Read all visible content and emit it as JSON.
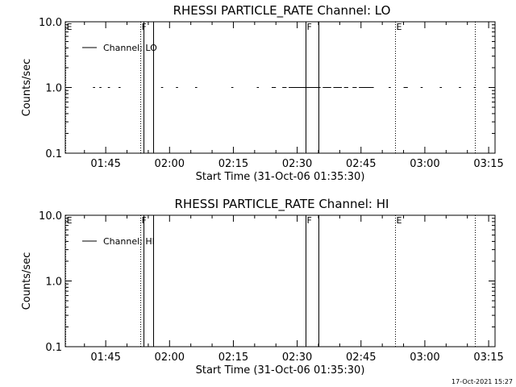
{
  "footer": {
    "timestamp": "17-Oct-2021 15:27"
  },
  "chart_data": [
    {
      "type": "line",
      "title": "RHESSI PARTICLE_RATE Channel: LO",
      "xlabel": "Start Time (31-Oct-06 01:35:30)",
      "ylabel": "Counts/sec",
      "yscale": "log",
      "ylim": [
        0.1,
        10.0
      ],
      "xlim": [
        "01:35:30",
        "03:16:30"
      ],
      "x_ticks": [
        "01:45",
        "02:00",
        "02:15",
        "02:30",
        "02:45",
        "03:00",
        "03:15"
      ],
      "y_ticks": [
        "0.1",
        "1.0",
        "10.0"
      ],
      "legend": {
        "position": "top-left",
        "entries": [
          "Channel: LO"
        ]
      },
      "series": [
        {
          "name": "Channel: LO",
          "value": 1.0,
          "segments": [
            [
              "01:42:00",
              "01:42:30"
            ],
            [
              "01:43:30",
              "01:44:00"
            ],
            [
              "01:45:30",
              "01:46:00"
            ],
            [
              "01:48:00",
              "01:48:30"
            ],
            [
              "01:58:00",
              "01:58:30"
            ],
            [
              "02:01:30",
              "02:02:00"
            ],
            [
              "02:06:00",
              "02:06:30"
            ],
            [
              "02:14:30",
              "02:15:00"
            ],
            [
              "02:20:30",
              "02:21:00"
            ],
            [
              "02:24:00",
              "02:25:00"
            ],
            [
              "02:26:30",
              "02:27:30"
            ],
            [
              "02:28:00",
              "02:35:30"
            ],
            [
              "02:36:00",
              "02:38:00"
            ],
            [
              "02:38:30",
              "02:40:30"
            ],
            [
              "02:41:00",
              "02:42:00"
            ],
            [
              "02:43:00",
              "02:44:00"
            ],
            [
              "02:44:30",
              "02:48:00"
            ],
            [
              "02:51:30",
              "02:52:00"
            ],
            [
              "02:55:00",
              "02:56:00"
            ],
            [
              "02:59:00",
              "02:59:30"
            ],
            [
              "03:03:30",
              "03:04:00"
            ],
            [
              "03:08:00",
              "03:08:30"
            ],
            [
              "03:11:30",
              "03:12:00"
            ]
          ]
        }
      ],
      "markers": [
        {
          "label": "E",
          "time": "01:35:30",
          "style": "dotted"
        },
        {
          "label": "F",
          "time": "01:53:10",
          "style": "dotted"
        },
        {
          "label": "",
          "time": "01:53:50",
          "style": "solid"
        },
        {
          "label": "",
          "time": "01:56:10",
          "style": "solid"
        },
        {
          "label": "F",
          "time": "02:32:00",
          "style": "solid"
        },
        {
          "label": "",
          "time": "02:35:00",
          "style": "solid"
        },
        {
          "label": "E",
          "time": "02:53:00",
          "style": "dotted"
        },
        {
          "label": "",
          "time": "03:11:50",
          "style": "dotted"
        }
      ]
    },
    {
      "type": "line",
      "title": "RHESSI PARTICLE_RATE Channel: HI",
      "xlabel": "Start Time (31-Oct-06 01:35:30)",
      "ylabel": "Counts/sec",
      "yscale": "log",
      "ylim": [
        0.1,
        10.0
      ],
      "xlim": [
        "01:35:30",
        "03:16:30"
      ],
      "x_ticks": [
        "01:45",
        "02:00",
        "02:15",
        "02:30",
        "02:45",
        "03:00",
        "03:15"
      ],
      "y_ticks": [
        "0.1",
        "1.0",
        "10.0"
      ],
      "legend": {
        "position": "top-left",
        "entries": [
          "Channel: HI"
        ]
      },
      "series": [
        {
          "name": "Channel: HI",
          "value": 1.0,
          "segments": []
        }
      ],
      "markers": [
        {
          "label": "E",
          "time": "01:35:30",
          "style": "dotted"
        },
        {
          "label": "F",
          "time": "01:53:10",
          "style": "dotted"
        },
        {
          "label": "",
          "time": "01:53:50",
          "style": "solid"
        },
        {
          "label": "",
          "time": "01:56:10",
          "style": "solid"
        },
        {
          "label": "F",
          "time": "02:32:00",
          "style": "solid"
        },
        {
          "label": "",
          "time": "02:35:00",
          "style": "solid"
        },
        {
          "label": "E",
          "time": "02:53:00",
          "style": "dotted"
        },
        {
          "label": "",
          "time": "03:11:50",
          "style": "dotted"
        }
      ]
    }
  ]
}
